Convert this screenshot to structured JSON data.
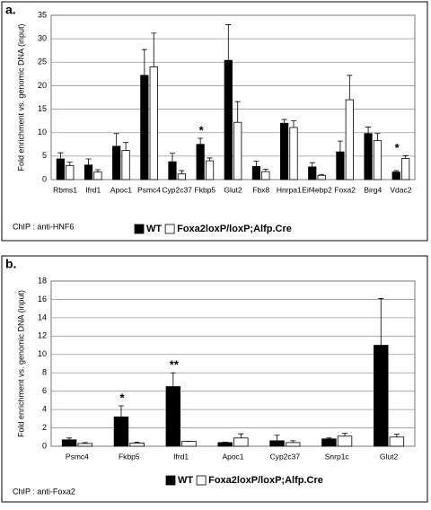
{
  "chart_data": [
    {
      "type": "bar",
      "panel_label": "a.",
      "ylabel": "Fold enrichment vs. genomic DNA (input)",
      "note": "ChIP : anti-HNF6",
      "categories": [
        "Rbms1",
        "Ifrd1",
        "Apoc1",
        "Psmc4",
        "Cyp2c37",
        "Fkbp5",
        "Glut2",
        "Fbx8",
        "Hnrpa1",
        "Eif4ebp2",
        "Foxa2",
        "Birg4",
        "Vdac2"
      ],
      "series": [
        {
          "name": "WT",
          "color": "#000000",
          "values": [
            4.4,
            3.1,
            7.1,
            22.2,
            3.8,
            7.5,
            25.4,
            2.8,
            12.0,
            2.7,
            5.9,
            9.8,
            1.6
          ],
          "errors": [
            1.3,
            1.3,
            2.7,
            5.5,
            1.8,
            1.3,
            7.6,
            1.1,
            0.8,
            0.9,
            2.3,
            1.4,
            0.3
          ]
        },
        {
          "name": "Foxa2loxP/loxP;Alfp.Cre",
          "color": "#ffffff",
          "values": [
            3.0,
            1.6,
            6.2,
            24.0,
            1.2,
            4.0,
            12.2,
            1.7,
            11.1,
            0.9,
            17.0,
            8.3,
            4.5
          ],
          "errors": [
            0.7,
            0.5,
            1.7,
            7.2,
            0.7,
            0.6,
            4.4,
            0.5,
            1.4,
            0.2,
            5.2,
            1.5,
            0.6
          ]
        }
      ],
      "annotations": [
        {
          "text": "*",
          "category": "Fkbp5"
        },
        {
          "text": "*",
          "category": "Vdac2"
        }
      ],
      "ylim": [
        0,
        35
      ],
      "yticks": [
        0,
        5,
        10,
        15,
        20,
        25,
        30,
        35
      ],
      "grid": true
    },
    {
      "type": "bar",
      "panel_label": "b.",
      "ylabel": "Fold enrichment vs. genomic DNA (input)",
      "note": "ChIP : anti-Foxa2",
      "categories": [
        "Psmc4",
        "Fkbp5",
        "Ifrd1",
        "Apoc1",
        "Cyp2c37",
        "Snrp1c",
        "Glut2"
      ],
      "series": [
        {
          "name": "WT",
          "color": "#000000",
          "values": [
            0.7,
            3.2,
            6.5,
            0.4,
            0.6,
            0.8,
            11.0
          ],
          "errors": [
            0.2,
            1.2,
            1.5,
            0.05,
            0.6,
            0.1,
            5.1
          ]
        },
        {
          "name": "Foxa2loxP/loxP;Alfp.Cre",
          "color": "#ffffff",
          "values": [
            0.3,
            0.35,
            0.55,
            0.9,
            0.4,
            1.1,
            1.0
          ],
          "errors": [
            0.1,
            0.1,
            0,
            0.45,
            0.2,
            0.3,
            0.3
          ]
        }
      ],
      "annotations": [
        {
          "text": "*",
          "category": "Fkbp5"
        },
        {
          "text": "**",
          "category": "Ifrd1"
        }
      ],
      "ylim": [
        0,
        18
      ],
      "yticks": [
        0,
        2,
        4,
        6,
        8,
        10,
        12,
        14,
        16,
        18
      ],
      "grid": true
    }
  ]
}
